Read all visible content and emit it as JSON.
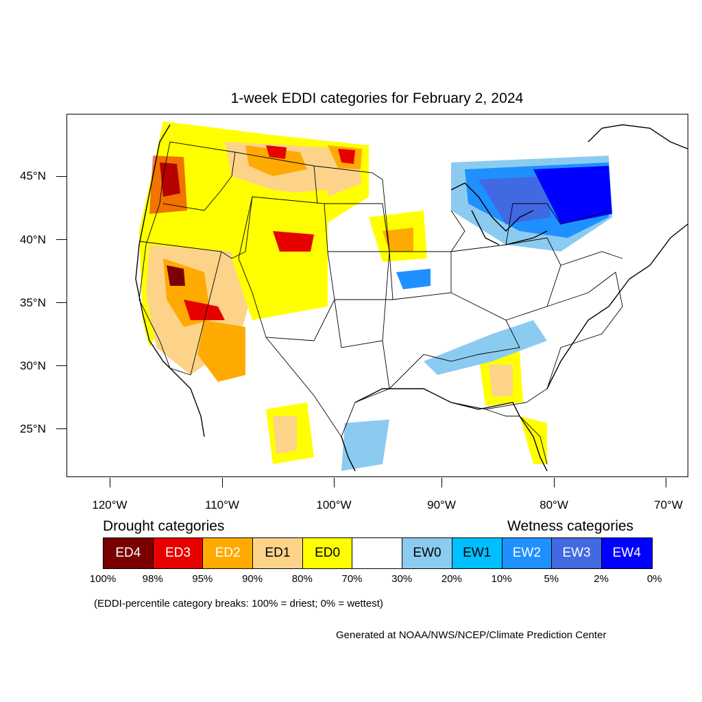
{
  "title": "1-week EDDI categories for February 2, 2024",
  "axes": {
    "lat_labels": [
      "45°N",
      "40°N",
      "35°N",
      "30°N",
      "25°N"
    ],
    "lon_labels": [
      "120°W",
      "110°W",
      "100°W",
      "90°W",
      "80°W",
      "70°W"
    ]
  },
  "legend": {
    "drought_heading": "Drought categories",
    "wetness_heading": "Wetness categories",
    "categories": [
      {
        "label": "ED4",
        "color": "#7a0000",
        "text_color": "#ffffff"
      },
      {
        "label": "ED3",
        "color": "#e60000",
        "text_color": "#ffffff"
      },
      {
        "label": "ED2",
        "color": "#ffaa00",
        "text_color": "#ffffff"
      },
      {
        "label": "ED1",
        "color": "#fdd38a",
        "text_color": "#000000"
      },
      {
        "label": "ED0",
        "color": "#ffff00",
        "text_color": "#000000"
      },
      {
        "label": "",
        "color": "#ffffff",
        "text_color": "#000000"
      },
      {
        "label": "EW0",
        "color": "#8ccbf0",
        "text_color": "#000000"
      },
      {
        "label": "EW1",
        "color": "#00bfff",
        "text_color": "#000000"
      },
      {
        "label": "EW2",
        "color": "#1e90ff",
        "text_color": "#ffffff"
      },
      {
        "label": "EW3",
        "color": "#4169e1",
        "text_color": "#ffffff"
      },
      {
        "label": "EW4",
        "color": "#0000ff",
        "text_color": "#ffffff"
      }
    ],
    "percentiles": [
      "100%",
      "98%",
      "95%",
      "90%",
      "80%",
      "70%",
      "30%",
      "20%",
      "10%",
      "5%",
      "2%",
      "0%"
    ]
  },
  "note": "(EDDI-percentile category breaks: 100% = driest; 0% = wettest)",
  "credit": "Generated at NOAA/NWS/NCEP/Climate Prediction Center"
}
